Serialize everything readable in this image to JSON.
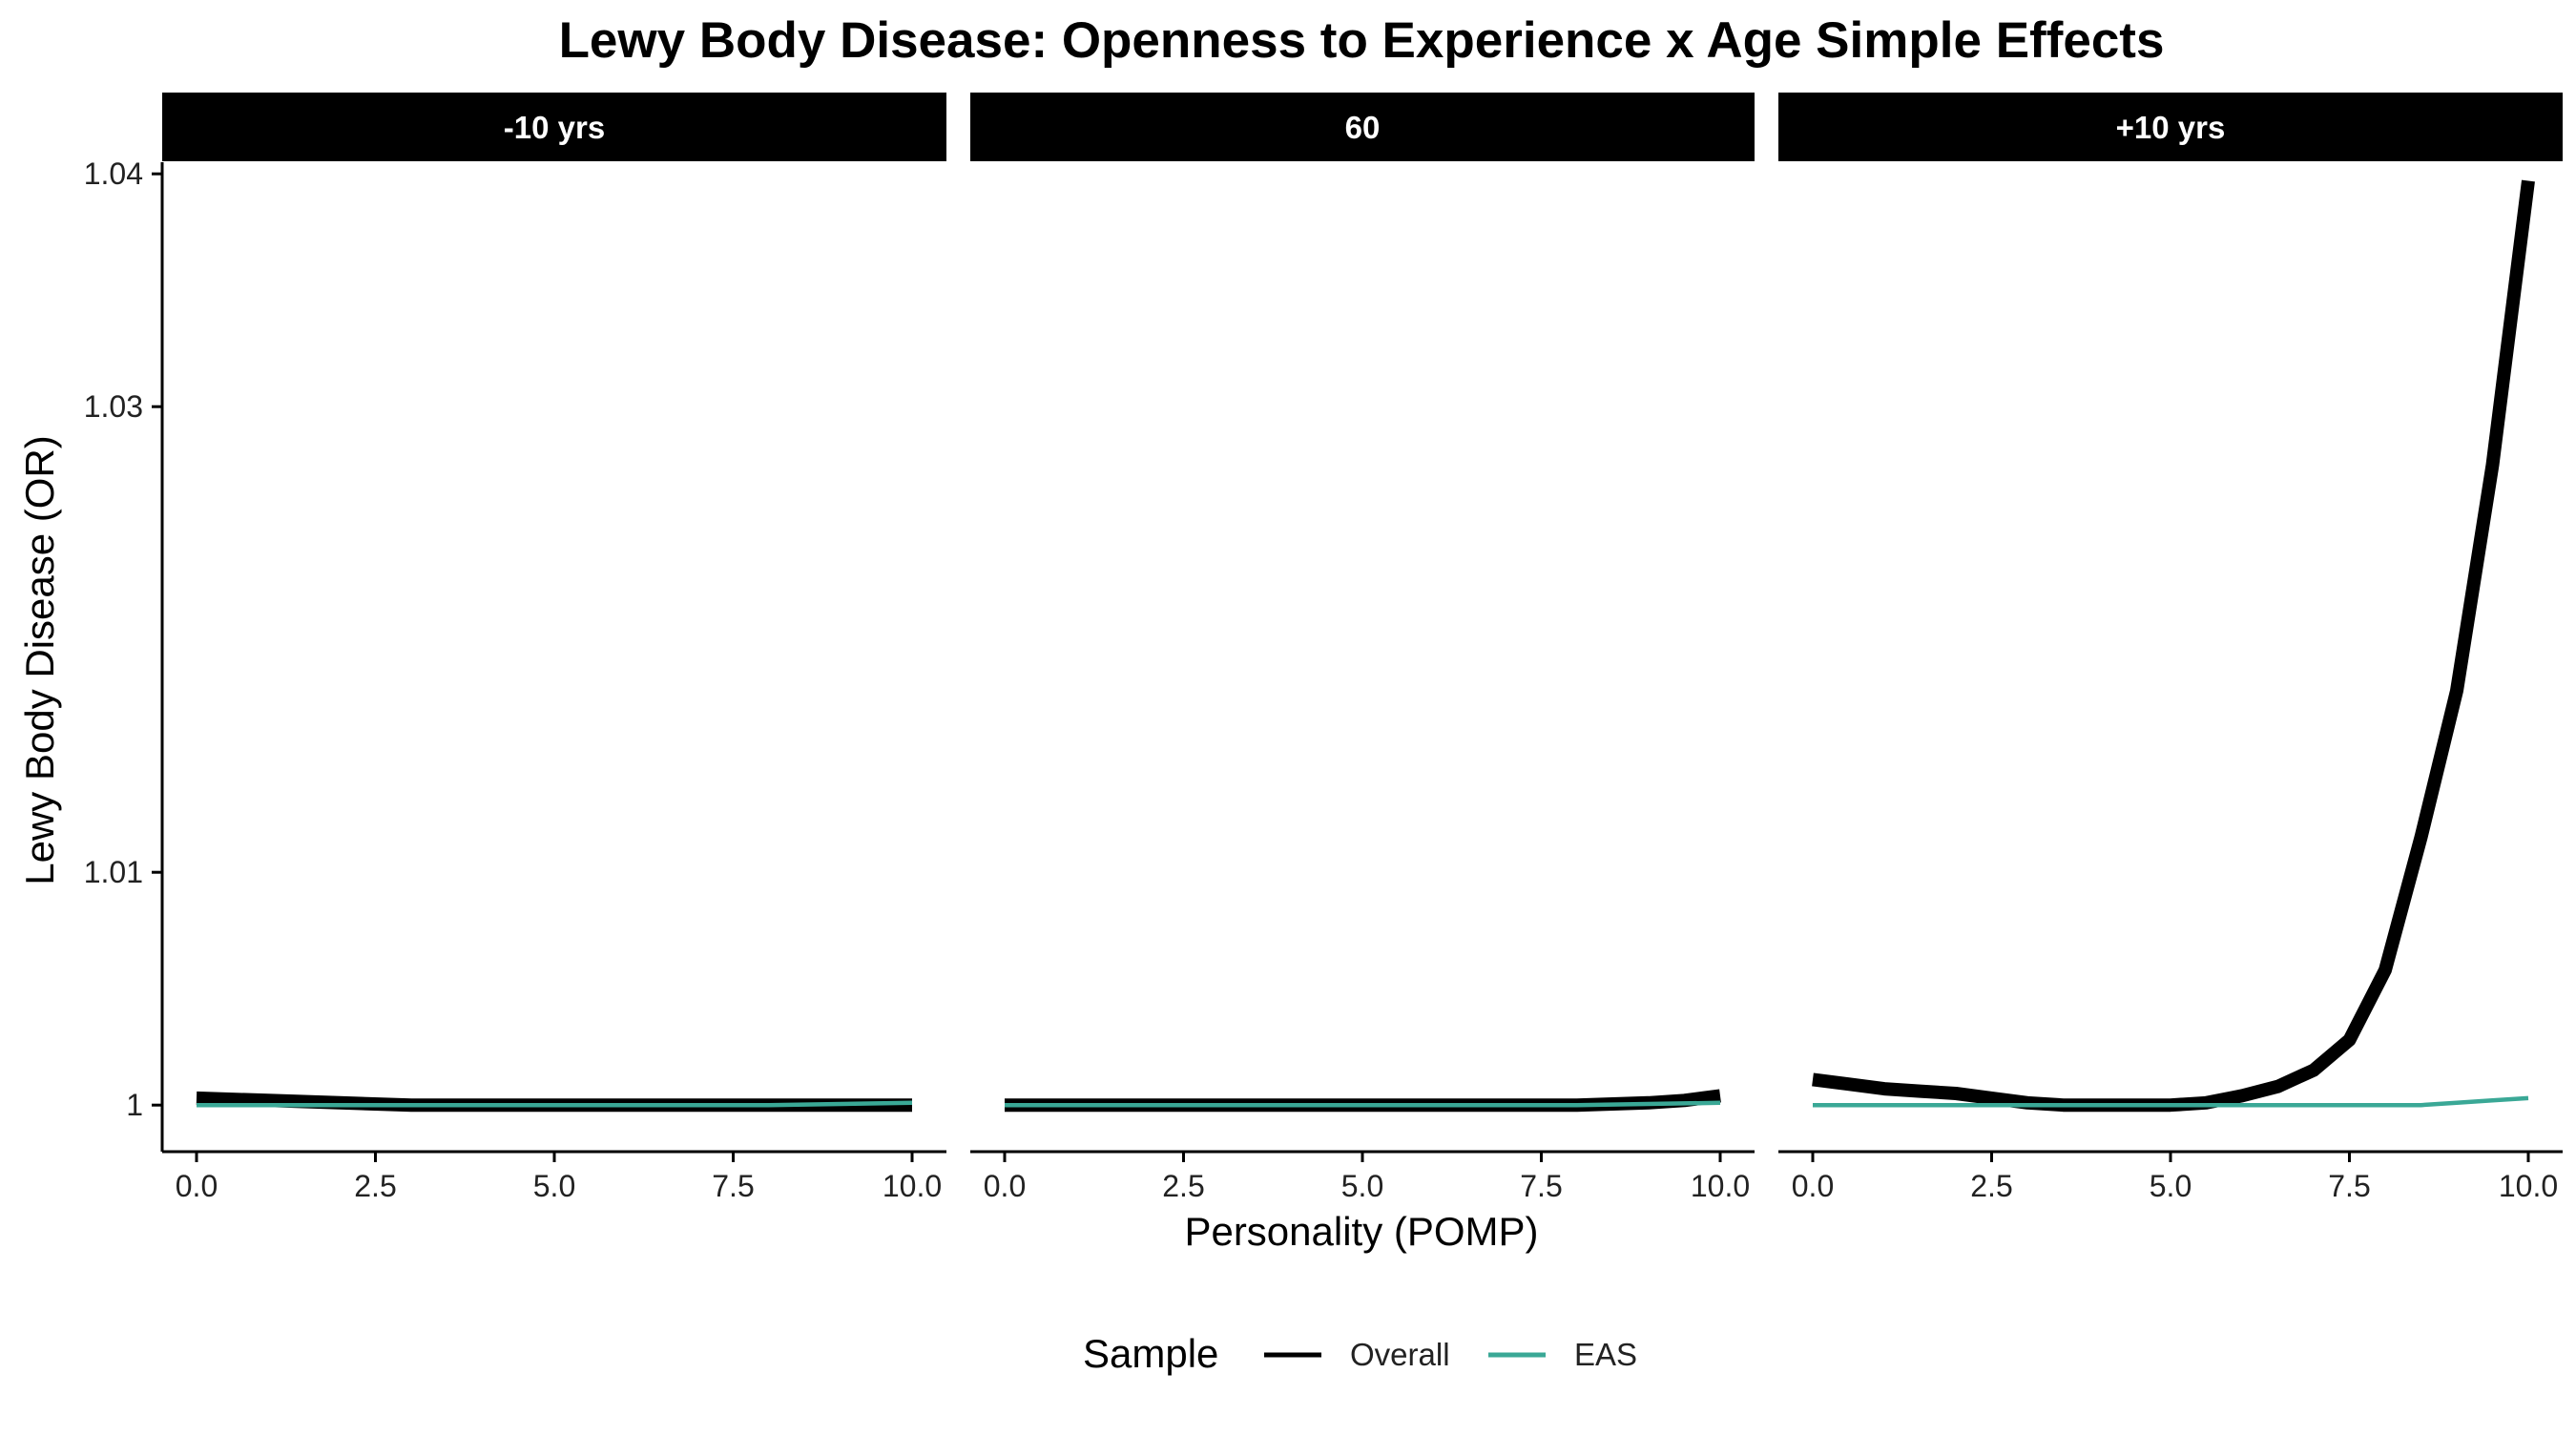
{
  "chart_data": {
    "type": "line",
    "title": "Lewy Body Disease: Openness to Experience x Age Simple Effects",
    "xlabel": "Personality (POMP)",
    "ylabel": "Lewy Body Disease (OR)",
    "xlim": [
      0,
      10
    ],
    "ylim": [
      0.998,
      1.0405
    ],
    "x_ticks": [
      "0.0",
      "2.5",
      "5.0",
      "7.5",
      "10.0"
    ],
    "x_tick_values": [
      0,
      2.5,
      5,
      7.5,
      10
    ],
    "y_ticks": [
      "1",
      "1.01",
      "1.03",
      "1.04"
    ],
    "y_tick_values": [
      1.0,
      1.01,
      1.03,
      1.04
    ],
    "grid": false,
    "legend": {
      "title": "Sample",
      "placement": "bottom",
      "entries": [
        {
          "name": "Overall",
          "color": "#000000"
        },
        {
          "name": "EAS",
          "color": "#3aa896"
        }
      ]
    },
    "facets": [
      {
        "label": "-10 yrs",
        "series": [
          {
            "name": "Overall",
            "x": [
              0,
              1,
              2,
              3,
              4,
              5,
              6,
              7,
              8,
              9,
              10
            ],
            "y": [
              1.0003,
              1.0002,
              1.0001,
              1.0,
              1.0,
              1.0,
              1.0,
              1.0,
              1.0,
              1.0,
              1.0
            ]
          },
          {
            "name": "EAS",
            "x": [
              0,
              2,
              4,
              6,
              8,
              10
            ],
            "y": [
              1.0,
              1.0,
              1.0,
              1.0,
              1.0,
              1.0001
            ]
          }
        ]
      },
      {
        "label": "60",
        "series": [
          {
            "name": "Overall",
            "x": [
              0,
              1,
              2,
              3,
              4,
              5,
              6,
              7,
              8,
              9,
              9.5,
              10
            ],
            "y": [
              1.0,
              1.0,
              1.0,
              1.0,
              1.0,
              1.0,
              1.0,
              1.0,
              1.0,
              1.0001,
              1.0002,
              1.0004
            ]
          },
          {
            "name": "EAS",
            "x": [
              0,
              2,
              4,
              6,
              8,
              10
            ],
            "y": [
              1.0,
              1.0,
              1.0,
              1.0,
              1.0,
              1.0001
            ]
          }
        ]
      },
      {
        "label": "+10 yrs",
        "series": [
          {
            "name": "Overall",
            "x": [
              0,
              0.5,
              1,
              1.5,
              2,
              2.5,
              3,
              3.5,
              4,
              4.5,
              5,
              5.5,
              6,
              6.5,
              7,
              7.5,
              8,
              8.5,
              9,
              9.5,
              10
            ],
            "y": [
              1.0011,
              1.0009,
              1.0007,
              1.0006,
              1.0005,
              1.0003,
              1.0001,
              1.0,
              1.0,
              1.0,
              1.0,
              1.0001,
              1.0004,
              1.0008,
              1.0015,
              1.0028,
              1.0058,
              1.0115,
              1.0178,
              1.0275,
              1.0397
            ]
          },
          {
            "name": "EAS",
            "x": [
              0,
              2,
              4,
              6,
              8,
              8.5,
              9,
              9.5,
              10
            ],
            "y": [
              1.0,
              1.0,
              1.0,
              1.0,
              1.0,
              1.0,
              1.0001,
              1.0002,
              1.0003
            ]
          }
        ]
      }
    ]
  }
}
